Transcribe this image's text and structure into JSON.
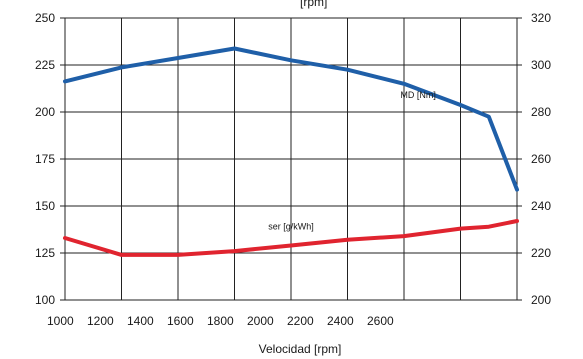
{
  "chart_data": {
    "type": "line",
    "top_title_fragment": "[rpm]",
    "xlabel": "Velocidad [rpm]",
    "x_tick_labels": [
      "1000",
      "1200",
      "1400",
      "1600",
      "1800",
      "2000",
      "2200",
      "2400",
      "2600"
    ],
    "xlim": [
      1000,
      2600
    ],
    "ylim_left": [
      100,
      250
    ],
    "ylim_right": [
      200,
      320
    ],
    "left_ticks": [
      100,
      125,
      150,
      175,
      200,
      225,
      250
    ],
    "right_ticks": [
      200,
      220,
      240,
      260,
      280,
      300,
      320
    ],
    "grid": true,
    "series": [
      {
        "name": "MD [Nm]",
        "axis": "right",
        "color": "#1f5fa8",
        "points": [
          {
            "x": 1000,
            "y": 293
          },
          {
            "x": 1200,
            "y": 299
          },
          {
            "x": 1400,
            "y": 303
          },
          {
            "x": 1600,
            "y": 307
          },
          {
            "x": 1800,
            "y": 302
          },
          {
            "x": 2000,
            "y": 298
          },
          {
            "x": 2200,
            "y": 292
          },
          {
            "x": 2400,
            "y": 283
          },
          {
            "x": 2500,
            "y": 278
          },
          {
            "x": 2600,
            "y": 247
          }
        ]
      },
      {
        "name": "ser [g/kWh]",
        "axis": "left",
        "color": "#e0242f",
        "points": [
          {
            "x": 1000,
            "y": 133
          },
          {
            "x": 1200,
            "y": 124
          },
          {
            "x": 1400,
            "y": 124
          },
          {
            "x": 1600,
            "y": 126
          },
          {
            "x": 1800,
            "y": 129
          },
          {
            "x": 2000,
            "y": 132
          },
          {
            "x": 2200,
            "y": 134
          },
          {
            "x": 2400,
            "y": 138
          },
          {
            "x": 2500,
            "y": 139
          },
          {
            "x": 2600,
            "y": 142
          }
        ]
      }
    ]
  }
}
